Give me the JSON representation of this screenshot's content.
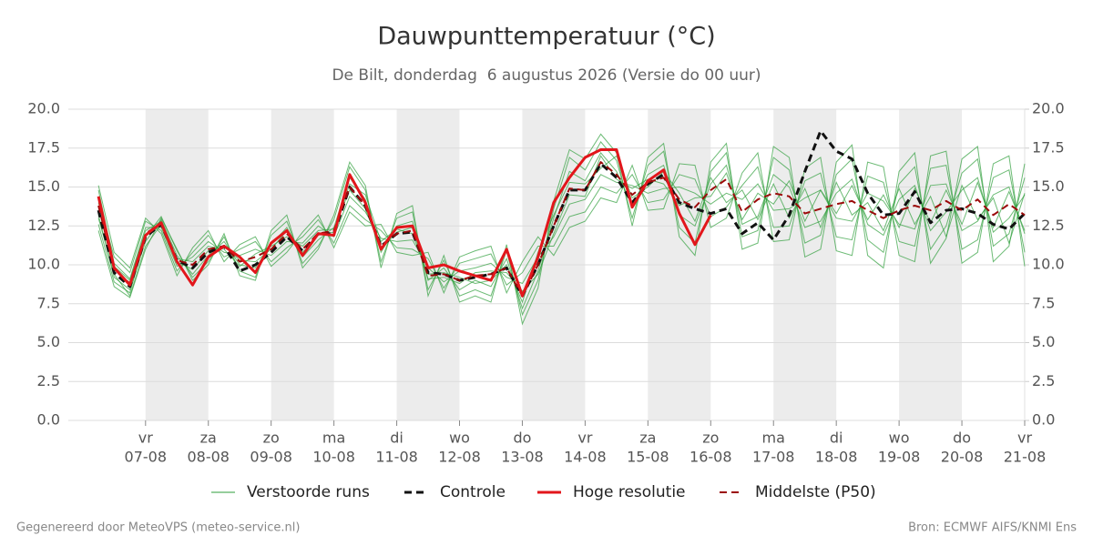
{
  "chart_data": {
    "type": "line",
    "title": "Dauwpunttemperatuur (°C)",
    "subtitle": "De Bilt, donderdag  6 augustus 2026 (Versie do 00 uur)",
    "footer_left": "Gegenereerd door MeteoVPS (meteo-service.nl)",
    "footer_right": "Bron: ECMWF AIFS/KNMI Ens",
    "xlim": [
      -1.23,
      14
    ],
    "xticks": [
      {
        "value": 0,
        "label": "07-08"
      },
      {
        "value": 1,
        "label": "08-08"
      },
      {
        "value": 2,
        "label": "09-08"
      },
      {
        "value": 3,
        "label": "10-08"
      },
      {
        "value": 4,
        "label": "11-08"
      },
      {
        "value": 5,
        "label": "12-08"
      },
      {
        "value": 6,
        "label": "13-08"
      },
      {
        "value": 7,
        "label": "14-08"
      },
      {
        "value": 8,
        "label": "15-08"
      },
      {
        "value": 9,
        "label": "16-08"
      },
      {
        "value": 10,
        "label": "17-08"
      },
      {
        "value": 11,
        "label": "18-08"
      },
      {
        "value": 12,
        "label": "19-08"
      },
      {
        "value": 13,
        "label": "20-08"
      },
      {
        "value": 14,
        "label": "21-08"
      }
    ],
    "xtick_weekdays": [
      "vr",
      "za",
      "zo",
      "ma",
      "di",
      "wo",
      "do",
      "vr",
      "za",
      "zo",
      "ma",
      "di",
      "wo",
      "do",
      "vr"
    ],
    "ylim": [
      0,
      20
    ],
    "yticks": [
      {
        "value": 0,
        "label": "0.0"
      },
      {
        "value": 2.5,
        "label": "2.5"
      },
      {
        "value": 5,
        "label": "5.0"
      },
      {
        "value": 7.5,
        "label": "7.5"
      },
      {
        "value": 10,
        "label": "10.0"
      },
      {
        "value": 12.5,
        "label": "12.5"
      },
      {
        "value": 15,
        "label": "15.0"
      },
      {
        "value": 17.5,
        "label": "17.5"
      },
      {
        "value": 20,
        "label": "20.0"
      }
    ],
    "y2lim": [
      0,
      20
    ],
    "y2ticks": [
      {
        "value": 0,
        "label": "0.0"
      },
      {
        "value": 2.5,
        "label": "2.5"
      },
      {
        "value": 5,
        "label": "5.0"
      },
      {
        "value": 7.5,
        "label": "7.5"
      },
      {
        "value": 10,
        "label": "10.0"
      },
      {
        "value": 12.5,
        "label": "12.5"
      },
      {
        "value": 15,
        "label": "15.0"
      },
      {
        "value": 17.5,
        "label": "17.5"
      },
      {
        "value": 20,
        "label": "20.0"
      }
    ],
    "grid": true,
    "x": [
      -0.75,
      -0.5,
      -0.25,
      0,
      0.25,
      0.5,
      0.75,
      1,
      1.25,
      1.5,
      1.75,
      2,
      2.25,
      2.5,
      2.75,
      3,
      3.25,
      3.5,
      3.75,
      4,
      4.25,
      4.5,
      4.75,
      5,
      5.25,
      5.5,
      5.75,
      6,
      6.25,
      6.5,
      6.75,
      7,
      7.25,
      7.5,
      7.75,
      8,
      8.25,
      8.5,
      8.75,
      9,
      9.25,
      9.5,
      9.75,
      10,
      10.25,
      10.5,
      10.75,
      11,
      11.25,
      11.5,
      11.75,
      12,
      12.25,
      12.5,
      12.75,
      13,
      13.25,
      13.5,
      13.75,
      14
    ],
    "ensemble": {
      "name": "Verstoorde runs",
      "color": "#2e9e3a",
      "members": [
        [
          13.2,
          9.2,
          8.4,
          11.5,
          12.9,
          10.6,
          9.4,
          10.6,
          11.5,
          10.0,
          9.8,
          11.3,
          12.4,
          10.5,
          11.6,
          12.4,
          15.6,
          14.2,
          10.8,
          12.5,
          12.8,
          9.0,
          9.8,
          8.4,
          9.0,
          8.6,
          10.4,
          7.2,
          9.6,
          13.0,
          16.0,
          15.4,
          17.2,
          16.0,
          13.8,
          15.8,
          16.4,
          13.2,
          12.5,
          15.2,
          16.4,
          12.6,
          13.1,
          15.8,
          15.0,
          12.4,
          12.8,
          14.6,
          15.5,
          12.6,
          11.9,
          14.2,
          15.1,
          12.2,
          13.4,
          14.8,
          15.6,
          12.1,
          13.0,
          14.5
        ],
        [
          14.8,
          10.1,
          9.1,
          12.4,
          12.4,
          9.9,
          10.5,
          11.5,
          10.8,
          10.6,
          11.0,
          10.6,
          11.5,
          11.4,
          12.5,
          11.8,
          14.4,
          13.4,
          11.7,
          11.5,
          11.6,
          9.8,
          8.9,
          9.6,
          9.8,
          10.1,
          9.2,
          8.8,
          10.5,
          11.8,
          13.9,
          14.2,
          15.8,
          15.3,
          15.1,
          14.6,
          14.9,
          15.0,
          14.6,
          13.9,
          14.6,
          14.2,
          15.2,
          13.5,
          13.6,
          14.3,
          14.8,
          13.0,
          12.8,
          14.6,
          14.1,
          12.6,
          12.3,
          15.1,
          15.2,
          12.2,
          12.8,
          14.5,
          15.0,
          12.0
        ],
        [
          12.6,
          8.9,
          8.2,
          11.8,
          13.1,
          10.9,
          9.2,
          10.2,
          11.8,
          9.6,
          9.2,
          11.9,
          12.8,
          10.1,
          11.2,
          12.9,
          16.3,
          14.8,
          10.2,
          13.0,
          13.4,
          8.4,
          10.3,
          8.0,
          8.4,
          8.0,
          10.9,
          6.8,
          9.0,
          13.6,
          16.9,
          16.1,
          17.9,
          16.7,
          13.0,
          16.4,
          17.3,
          12.4,
          11.4,
          16.0,
          17.2,
          11.8,
          12.2,
          16.9,
          16.1,
          11.4,
          11.9,
          15.8,
          16.8,
          11.6,
          10.8,
          15.2,
          16.3,
          11.0,
          12.5,
          15.9,
          16.8,
          11.2,
          12.0,
          15.6
        ],
        [
          14.2,
          10.5,
          9.5,
          12.8,
          12.2,
          9.6,
          10.8,
          11.9,
          10.5,
          11.0,
          11.5,
          10.2,
          11.1,
          11.8,
          12.9,
          11.4,
          13.8,
          12.9,
          12.2,
          11.1,
          11.0,
          10.4,
          8.5,
          10.1,
          10.4,
          10.7,
          8.7,
          9.5,
          11.2,
          11.2,
          13.1,
          13.4,
          15.0,
          14.6,
          15.8,
          14.0,
          14.2,
          15.8,
          15.5,
          13.1,
          13.7,
          15.1,
          16.3,
          12.4,
          12.5,
          15.4,
          15.9,
          11.8,
          11.6,
          15.7,
          15.3,
          11.5,
          11.2,
          16.2,
          16.4,
          11.0,
          11.6,
          15.6,
          16.1,
          10.8
        ],
        [
          13.0,
          9.4,
          8.0,
          11.2,
          12.6,
          10.2,
          9.7,
          10.9,
          11.2,
          10.3,
          10.2,
          11.0,
          12.2,
          10.8,
          11.9,
          12.1,
          15.2,
          14.5,
          11.5,
          12.3,
          12.0,
          9.4,
          9.5,
          9.2,
          8.8,
          9.0,
          10.0,
          7.6,
          10.8,
          13.2,
          15.3,
          15.2,
          16.2,
          17.0,
          14.3,
          15.0,
          16.0,
          14.6,
          12.8,
          15.6,
          14.0,
          14.8,
          12.9,
          15.2,
          13.0,
          14.9,
          12.4,
          15.3,
          13.2,
          14.0,
          12.2,
          14.9,
          12.6,
          14.4,
          11.8,
          15.1,
          12.9,
          14.3,
          11.4,
          14.6
        ],
        [
          14.0,
          9.9,
          9.0,
          12.2,
          12.8,
          10.4,
          10.2,
          11.2,
          11.0,
          9.9,
          10.7,
          11.2,
          11.8,
          11.2,
          12.2,
          12.3,
          14.8,
          13.6,
          11.0,
          12.1,
          12.4,
          9.1,
          9.2,
          8.8,
          9.5,
          9.6,
          9.5,
          8.3,
          9.4,
          12.0,
          14.5,
          14.4,
          17.0,
          15.5,
          14.9,
          15.5,
          15.2,
          13.8,
          14.3,
          14.4,
          15.9,
          12.9,
          14.6,
          13.9,
          15.4,
          12.8,
          14.8,
          13.3,
          15.1,
          12.9,
          14.5,
          12.4,
          14.9,
          12.7,
          14.8,
          12.6,
          15.3,
          12.4,
          14.7,
          12.2
        ],
        [
          12.2,
          8.6,
          7.9,
          11.0,
          13.0,
          11.0,
          9.0,
          10.0,
          12.0,
          9.3,
          9.0,
          12.2,
          13.2,
          9.8,
          11.0,
          13.2,
          16.6,
          15.1,
          9.8,
          13.3,
          13.8,
          8.0,
          10.6,
          7.6,
          8.0,
          7.6,
          11.3,
          6.2,
          8.5,
          14.1,
          17.4,
          16.8,
          18.4,
          17.2,
          12.5,
          16.9,
          17.8,
          11.8,
          10.6,
          16.6,
          17.8,
          11.0,
          11.4,
          17.6,
          16.9,
          10.5,
          11.0,
          16.6,
          17.7,
          10.6,
          9.8,
          16.0,
          17.2,
          10.1,
          11.7,
          16.8,
          17.6,
          10.2,
          11.2,
          16.5
        ],
        [
          15.1,
          10.8,
          9.8,
          13.0,
          12.0,
          9.3,
          11.1,
          12.2,
          10.2,
          11.3,
          11.8,
          9.9,
          10.8,
          12.1,
          13.2,
          11.1,
          13.4,
          12.5,
          12.6,
          10.8,
          10.6,
          10.8,
          8.2,
          10.5,
          10.9,
          11.2,
          8.2,
          10.2,
          11.8,
          10.6,
          12.4,
          12.8,
          14.3,
          14.0,
          16.4,
          13.5,
          13.6,
          16.5,
          16.4,
          12.4,
          13.0,
          15.9,
          17.2,
          11.5,
          11.6,
          16.2,
          16.9,
          10.9,
          10.6,
          16.6,
          16.3,
          10.6,
          10.2,
          17.0,
          17.3,
          10.1,
          10.8,
          16.5,
          17.0,
          9.9
        ]
      ]
    },
    "series": [
      {
        "name": "Controle",
        "color": "#111111",
        "dashed": true,
        "width": 3,
        "values": [
          13.5,
          9.5,
          8.6,
          11.8,
          12.6,
          10.3,
          9.8,
          10.8,
          11.2,
          9.6,
          10.0,
          10.8,
          11.8,
          10.9,
          12.0,
          12.0,
          15.0,
          13.8,
          11.2,
          12.0,
          12.1,
          9.5,
          9.4,
          9.0,
          9.2,
          9.4,
          9.8,
          8.0,
          10.0,
          12.5,
          14.8,
          14.8,
          16.5,
          15.6,
          14.0,
          15.2,
          15.8,
          14.0,
          13.6,
          13.3,
          13.6,
          12.0,
          12.7,
          11.6,
          13.2,
          16.0,
          18.6,
          17.3,
          16.8,
          14.6,
          13.2,
          13.3,
          14.7,
          12.7,
          13.5,
          13.6,
          13.3,
          12.6,
          12.3,
          13.3
        ]
      },
      {
        "name": "Hoge resolutie",
        "color": "#e2161b",
        "dashed": false,
        "width": 3,
        "values": [
          14.4,
          9.8,
          8.7,
          11.9,
          12.7,
          10.2,
          8.7,
          10.5,
          11.2,
          10.5,
          9.5,
          11.4,
          12.2,
          10.6,
          12.0,
          11.9,
          15.8,
          14.0,
          11.0,
          12.4,
          12.5,
          9.8,
          10.0,
          9.6,
          9.3,
          9.0,
          11.0,
          8.0,
          10.5,
          14.0,
          15.6,
          16.9,
          17.4,
          17.4,
          13.7,
          15.4,
          16.1,
          13.3,
          11.3,
          13.2,
          null,
          null,
          null,
          null,
          null,
          null,
          null,
          null,
          null,
          null,
          null,
          null,
          null,
          null,
          null,
          null,
          null,
          null,
          null,
          null
        ]
      },
      {
        "name": "Middelste (P50)",
        "color": "#9b0a0a",
        "dashed": true,
        "width": 2,
        "values": [
          13.8,
          9.7,
          8.8,
          12.0,
          12.7,
          10.3,
          10.0,
          11.0,
          11.2,
          10.2,
          10.5,
          11.0,
          12.0,
          11.0,
          12.0,
          12.2,
          15.0,
          13.8,
          11.2,
          12.0,
          12.2,
          9.3,
          9.4,
          9.0,
          9.3,
          9.4,
          9.8,
          8.0,
          10.0,
          12.5,
          14.9,
          14.8,
          16.6,
          15.8,
          14.5,
          15.3,
          15.6,
          14.2,
          13.7,
          14.8,
          15.5,
          13.4,
          14.2,
          14.6,
          14.4,
          13.3,
          13.6,
          13.9,
          14.1,
          13.5,
          13.0,
          13.5,
          13.8,
          13.5,
          14.1,
          13.5,
          14.2,
          13.2,
          13.9,
          13.2
        ]
      }
    ]
  }
}
